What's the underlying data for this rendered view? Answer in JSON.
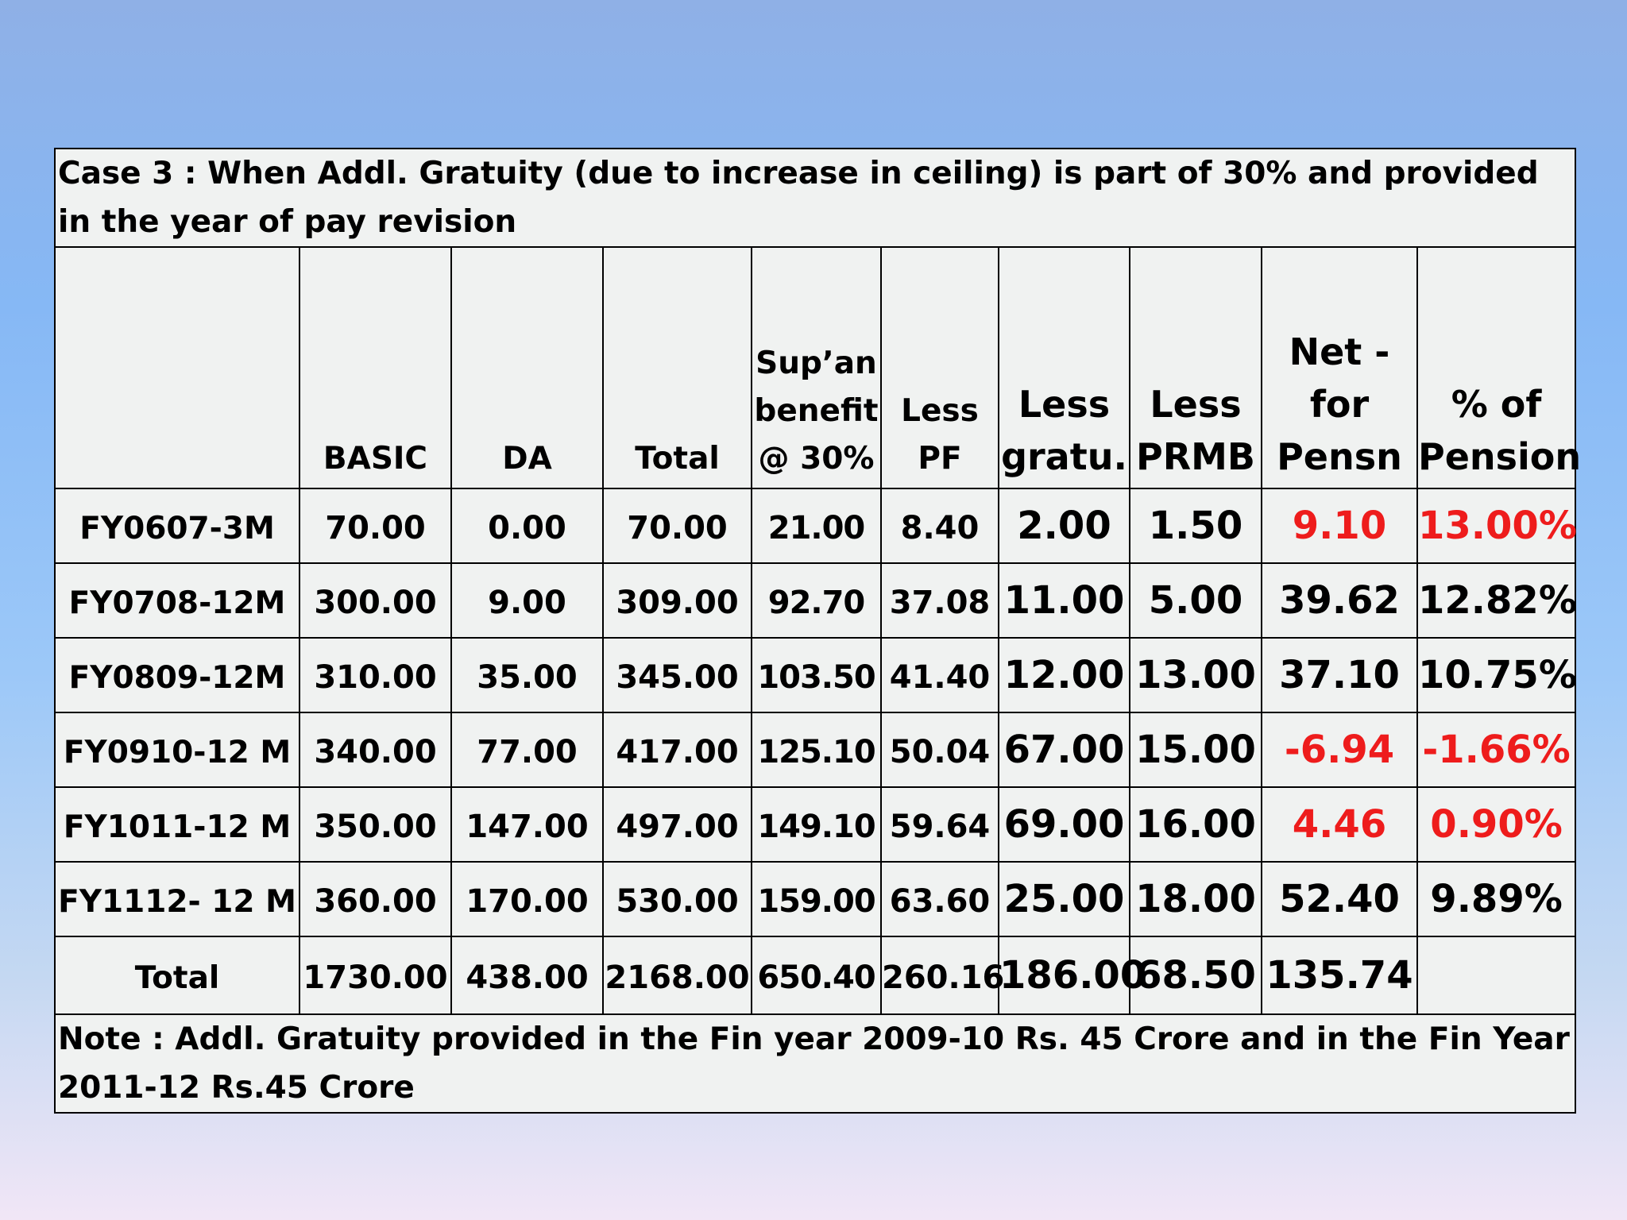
{
  "case_title": "Case  3 :  When Addl. Gratuity (due to increase in ceiling)  is  part of 30% and provided in the year of pay revision",
  "columns": [
    {
      "key": "label",
      "header": ""
    },
    {
      "key": "basic",
      "header": "BASIC"
    },
    {
      "key": "da",
      "header": "DA"
    },
    {
      "key": "total",
      "header": "Total"
    },
    {
      "key": "supan",
      "header": "Sup’an\nbenefit\n@ 30%"
    },
    {
      "key": "less_pf",
      "header": "Less\nPF"
    },
    {
      "key": "less_gratu",
      "header": "Less\ngratu."
    },
    {
      "key": "less_prmb",
      "header": "Less\nPRMB"
    },
    {
      "key": "net_pension",
      "header": "Net -\nfor\nPensn"
    },
    {
      "key": "pct_pension",
      "header": "% of\nPension"
    }
  ],
  "rows": [
    {
      "label": "FY0607-3M",
      "basic": "70.00",
      "da": "0.00",
      "total": "70.00",
      "supan": "21.00",
      "less_pf": "8.40",
      "less_gratu": "2.00",
      "less_prmb": "1.50",
      "net_pension": "9.10",
      "pct_pension": "13.00%"
    },
    {
      "label": "FY0708-12M",
      "basic": "300.00",
      "da": "9.00",
      "total": "309.00",
      "supan": "92.70",
      "less_pf": "37.08",
      "less_gratu": "11.00",
      "less_prmb": "5.00",
      "net_pension": "39.62",
      "pct_pension": "12.82%"
    },
    {
      "label": "FY0809-12M",
      "basic": "310.00",
      "da": "35.00",
      "total": "345.00",
      "supan": "103.50",
      "less_pf": "41.40",
      "less_gratu": "12.00",
      "less_prmb": "13.00",
      "net_pension": "37.10",
      "pct_pension": "10.75%"
    },
    {
      "label": "FY0910-12 M",
      "basic": "340.00",
      "da": "77.00",
      "total": "417.00",
      "supan": "125.10",
      "less_pf": "50.04",
      "less_gratu": "67.00",
      "less_prmb": "15.00",
      "net_pension": "-6.94",
      "pct_pension": "-1.66%"
    },
    {
      "label": "FY1011-12 M",
      "basic": "350.00",
      "da": "147.00",
      "total": "497.00",
      "supan": "149.10",
      "less_pf": "59.64",
      "less_gratu": "69.00",
      "less_prmb": "16.00",
      "net_pension": "4.46",
      "pct_pension": "0.90%"
    },
    {
      "label": "FY1112- 12 M",
      "basic": "360.00",
      "da": "170.00",
      "total": "530.00",
      "supan": "159.00",
      "less_pf": "63.60",
      "less_gratu": "25.00",
      "less_prmb": "18.00",
      "net_pension": "52.40",
      "pct_pension": "9.89%"
    }
  ],
  "total_row": {
    "label": "Total",
    "basic": "1730.00",
    "da": "438.00",
    "total": "2168.00",
    "supan": "650.40",
    "less_pf": "260.16",
    "less_gratu": "186.00",
    "less_prmb": "68.50",
    "net_pension": "135.74",
    "pct_pension": ""
  },
  "note": "Note : Addl. Gratuity  provided in the Fin year 2009-10 Rs. 45 Crore and  in the Fin Year 2011-12 Rs.45 Crore",
  "colors": {
    "negative": "#ee1c1c",
    "cell_background": "#f0f2f1",
    "border": "#000000"
  }
}
